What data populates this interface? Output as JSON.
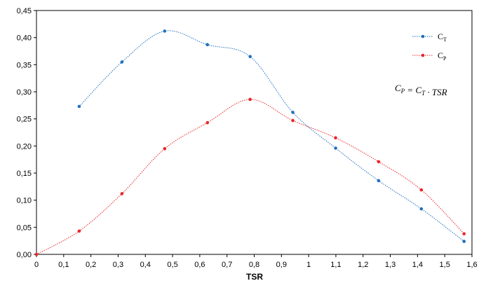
{
  "chart_data": {
    "type": "line",
    "xlabel": "TSR",
    "ylabel": "",
    "xlim": [
      0,
      1.6
    ],
    "ylim": [
      0,
      0.45
    ],
    "x_ticks": [
      "0",
      "0,1",
      "0,2",
      "0,3",
      "0,4",
      "0,5",
      "0,6",
      "0,7",
      "0,8",
      "0,9",
      "1",
      "1,1",
      "1,2",
      "1,3",
      "1,4",
      "1,5",
      "1,6"
    ],
    "x_tick_values": [
      0,
      0.1,
      0.2,
      0.3,
      0.4,
      0.5,
      0.6,
      0.7,
      0.8,
      0.9,
      1.0,
      1.1,
      1.2,
      1.3,
      1.4,
      1.5,
      1.6
    ],
    "y_ticks": [
      "0,00",
      "0,05",
      "0,10",
      "0,15",
      "0,20",
      "0,25",
      "0,30",
      "0,35",
      "0,40",
      "0,45"
    ],
    "y_tick_values": [
      0,
      0.05,
      0.1,
      0.15,
      0.2,
      0.25,
      0.3,
      0.35,
      0.4,
      0.45
    ],
    "grid": false,
    "legend_position": "top-right",
    "formula": "C_P = C_T · TSR",
    "series": [
      {
        "name": "CT",
        "legend_main": "C",
        "legend_sub": "T",
        "color": "#1f6fbf",
        "x": [
          0.157,
          0.314,
          0.471,
          0.628,
          0.785,
          0.942,
          1.099,
          1.257,
          1.414,
          1.571
        ],
        "y": [
          0.273,
          0.355,
          0.412,
          0.387,
          0.365,
          0.262,
          0.196,
          0.136,
          0.084,
          0.024
        ]
      },
      {
        "name": "CP",
        "legend_main": "C",
        "legend_sub": "P",
        "color": "#e8262a",
        "x": [
          0.0,
          0.157,
          0.314,
          0.471,
          0.628,
          0.785,
          0.942,
          1.099,
          1.257,
          1.414,
          1.571
        ],
        "y": [
          0.0,
          0.043,
          0.112,
          0.195,
          0.243,
          0.286,
          0.247,
          0.215,
          0.171,
          0.119,
          0.038
        ]
      }
    ]
  }
}
